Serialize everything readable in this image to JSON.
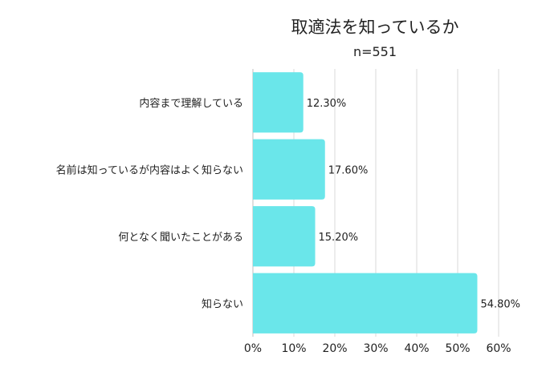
{
  "chart_data": {
    "type": "bar",
    "orientation": "horizontal",
    "title": "取適法を知っているか",
    "subtitle": "n=551",
    "categories": [
      "内容まで理解している",
      "名前は知っているが内容はよく知らない",
      "何となく聞いたことがある",
      "知らない"
    ],
    "values": [
      12.3,
      17.6,
      15.2,
      54.8
    ],
    "value_labels": [
      "12.30%",
      "17.60%",
      "15.20%",
      "54.80%"
    ],
    "xlim": [
      0,
      60
    ],
    "xticks": [
      "0%",
      "10%",
      "20%",
      "30%",
      "40%",
      "50%",
      "60%"
    ],
    "grid": true,
    "legend": "none",
    "bar_color": "#6ae6ea"
  }
}
